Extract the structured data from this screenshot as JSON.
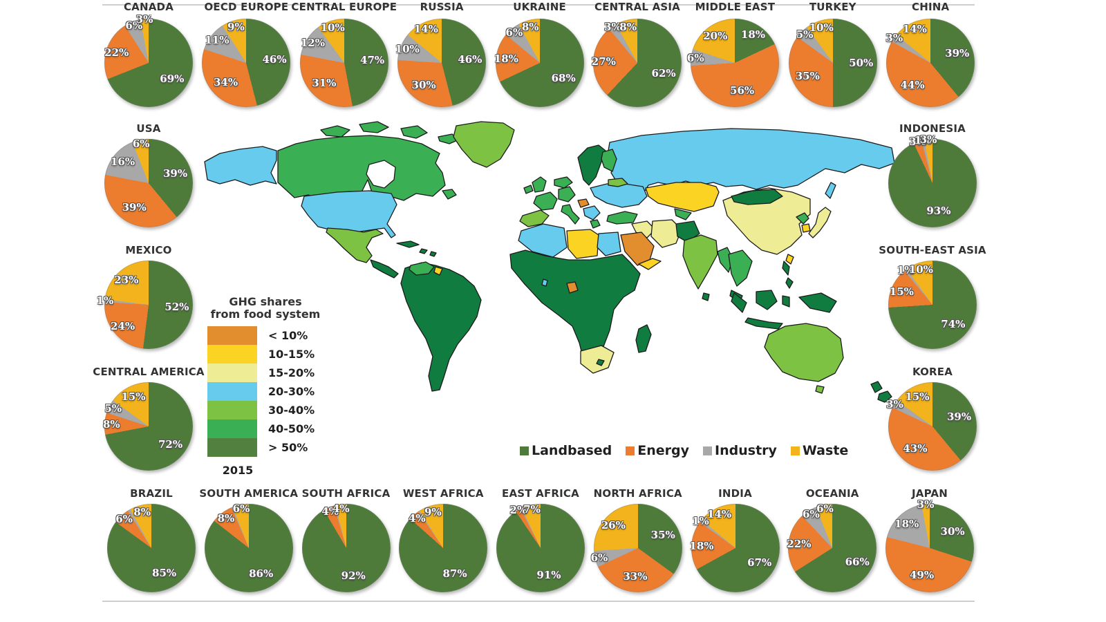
{
  "figure": {
    "year_label": "2015",
    "map_legend": {
      "title_line1": "GHG shares",
      "title_line2": "from food system",
      "classes": [
        {
          "label": "< 10%",
          "color": "#e28e2e"
        },
        {
          "label": "10-15%",
          "color": "#fbd323"
        },
        {
          "label": "15-20%",
          "color": "#eeec95"
        },
        {
          "label": "20-30%",
          "color": "#67cbee"
        },
        {
          "label": "30-40%",
          "color": "#7dc242"
        },
        {
          "label": "40-50%",
          "color": "#3baf54"
        },
        {
          "label": "> 50%",
          "color": "#52803f"
        }
      ],
      "map_dark_green_fill": "#107c3f",
      "outline_color": "#1b1b1b"
    },
    "series_legend": [
      {
        "label": "Landbased",
        "color": "#4e7b3a"
      },
      {
        "label": "Energy",
        "color": "#ec7d2f"
      },
      {
        "label": "Industry",
        "color": "#a8a8a8"
      },
      {
        "label": "Waste",
        "color": "#f2b31c"
      }
    ]
  },
  "chart_data": {
    "type": "pie",
    "unit": "%",
    "series_labels": [
      "Landbased",
      "Energy",
      "Industry",
      "Waste"
    ],
    "series_colors": [
      "#4e7b3a",
      "#ec7d2f",
      "#a8a8a8",
      "#f2b31c"
    ],
    "note": "Each regional pie shows 2015 GHG shares of the food system by source; slices drawn clockwise from top in series order.",
    "pies": [
      {
        "region": "CANADA",
        "group": "top",
        "index": 0,
        "values": [
          69,
          22,
          6,
          3
        ],
        "labels": [
          "69%",
          "22%",
          "6%",
          "3%"
        ]
      },
      {
        "region": "OECD EUROPE",
        "group": "top",
        "index": 1,
        "values": [
          46,
          34,
          11,
          9
        ],
        "labels": [
          "46%",
          "34%",
          "11%",
          "9%"
        ]
      },
      {
        "region": "CENTRAL EUROPE",
        "group": "top",
        "index": 2,
        "values": [
          47,
          31,
          12,
          10
        ],
        "labels": [
          "47%",
          "31%",
          "12%",
          "10%"
        ]
      },
      {
        "region": "RUSSIA",
        "group": "top",
        "index": 3,
        "values": [
          46,
          30,
          10,
          14
        ],
        "labels": [
          "46%",
          "30%",
          "10%",
          "14%"
        ]
      },
      {
        "region": "UKRAINE",
        "group": "top",
        "index": 4,
        "values": [
          68,
          18,
          6,
          8
        ],
        "labels": [
          "68%",
          "18%",
          "6%",
          "8%"
        ]
      },
      {
        "region": "CENTRAL ASIA",
        "group": "top",
        "index": 5,
        "values": [
          62,
          27,
          3,
          8
        ],
        "labels": [
          "62%",
          "27%",
          "3%",
          "8%"
        ]
      },
      {
        "region": "MIDDLE EAST",
        "group": "top",
        "index": 6,
        "values": [
          18,
          56,
          6,
          20
        ],
        "labels": [
          "18%",
          "56%",
          "6%",
          "20%"
        ]
      },
      {
        "region": "TURKEY",
        "group": "top",
        "index": 7,
        "values": [
          50,
          35,
          5,
          10
        ],
        "labels": [
          "50%",
          "35%",
          "5%",
          "10%"
        ]
      },
      {
        "region": "CHINA",
        "group": "top",
        "index": 8,
        "values": [
          39,
          44,
          3,
          14
        ],
        "labels": [
          "39%",
          "44%",
          "3%",
          "14%"
        ]
      },
      {
        "region": "USA",
        "group": "left",
        "index": 0,
        "values": [
          39,
          39,
          16,
          6
        ],
        "labels": [
          "39%",
          "39%",
          "16%",
          "6%"
        ]
      },
      {
        "region": "MEXICO",
        "group": "left",
        "index": 1,
        "values": [
          52,
          24,
          1,
          23
        ],
        "labels": [
          "52%",
          "24%",
          "1%",
          "23%"
        ]
      },
      {
        "region": "CENTRAL AMERICA",
        "group": "left",
        "index": 2,
        "values": [
          72,
          8,
          5,
          15
        ],
        "labels": [
          "72%",
          "8%",
          "5%",
          "15%"
        ]
      },
      {
        "region": "INDONESIA",
        "group": "right",
        "index": 0,
        "values": [
          93,
          3,
          1,
          3
        ],
        "labels": [
          "93%",
          "3%",
          "1%",
          "3%"
        ]
      },
      {
        "region": "SOUTH-EAST ASIA",
        "group": "right",
        "index": 1,
        "values": [
          74,
          15,
          1,
          10
        ],
        "labels": [
          "74%",
          "15%",
          "1%",
          "10%"
        ]
      },
      {
        "region": "KOREA",
        "group": "right",
        "index": 2,
        "values": [
          39,
          43,
          3,
          15
        ],
        "labels": [
          "39%",
          "43%",
          "3%",
          "15%"
        ]
      },
      {
        "region": "BRAZIL",
        "group": "bottom",
        "index": 0,
        "values": [
          85,
          6,
          1,
          8
        ],
        "labels": [
          "85%",
          "6%",
          null,
          "8%"
        ]
      },
      {
        "region": "SOUTH AMERICA",
        "group": "bottom",
        "index": 1,
        "values": [
          86,
          8,
          0.5,
          6
        ],
        "labels": [
          "86%",
          "8%",
          null,
          "6%"
        ]
      },
      {
        "region": "SOUTH AFRICA",
        "group": "bottom",
        "index": 2,
        "values": [
          92,
          4,
          0.5,
          4
        ],
        "labels": [
          "92%",
          "4%",
          null,
          "4%"
        ]
      },
      {
        "region": "WEST AFRICA",
        "group": "bottom",
        "index": 3,
        "values": [
          87,
          4,
          0.5,
          9
        ],
        "labels": [
          "87%",
          "4%",
          null,
          "9%"
        ]
      },
      {
        "region": "EAST AFRICA",
        "group": "bottom",
        "index": 4,
        "values": [
          91,
          2,
          0.5,
          7
        ],
        "labels": [
          "91%",
          "2%",
          null,
          "7%"
        ]
      },
      {
        "region": "NORTH AFRICA",
        "group": "bottom",
        "index": 5,
        "values": [
          35,
          33,
          6,
          26
        ],
        "labels": [
          "35%",
          "33%",
          "6%",
          "26%"
        ]
      },
      {
        "region": "INDIA",
        "group": "bottom",
        "index": 6,
        "values": [
          67,
          18,
          1,
          14
        ],
        "labels": [
          "67%",
          "18%",
          "1%",
          "14%"
        ]
      },
      {
        "region": "OCEANIA",
        "group": "bottom",
        "index": 7,
        "values": [
          66,
          22,
          6,
          6
        ],
        "labels": [
          "66%",
          "22%",
          "6%",
          "6%"
        ]
      },
      {
        "region": "JAPAN",
        "group": "bottom",
        "index": 8,
        "values": [
          30,
          49,
          18,
          3
        ],
        "labels": [
          "30%",
          "49%",
          "18%",
          "3%"
        ]
      }
    ]
  }
}
